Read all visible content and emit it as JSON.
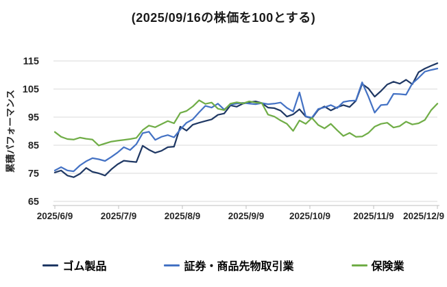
{
  "title": "(2025/09/16の株価を100とする)",
  "colors": {
    "gridline": "#D9D9D9",
    "axis_line": "#BFBFBF",
    "tick_text": "#262626",
    "title_text": "#1a1a1a"
  },
  "chart_data": {
    "type": "line",
    "title": "(2025/09/16の株価を100とする)",
    "xlabel": "",
    "ylabel": "累積パフォーマンス",
    "ylim": [
      65,
      115
    ],
    "yticks": [
      65,
      75,
      85,
      95,
      105,
      115
    ],
    "xtick_labels": [
      "2025/6/9",
      "2025/7/9",
      "2025/8/9",
      "2025/9/9",
      "2025/10/9",
      "2025/11/9",
      "2025/12/9"
    ],
    "grid": "horizontal",
    "legend_position": "bottom",
    "baseline_note": "2025/09/16 = 100",
    "categories": [
      "2025/6/9",
      "2025/6/12",
      "2025/6/15",
      "2025/6/18",
      "2025/6/21",
      "2025/6/24",
      "2025/6/27",
      "2025/6/30",
      "2025/7/3",
      "2025/7/6",
      "2025/7/9",
      "2025/7/12",
      "2025/7/15",
      "2025/7/18",
      "2025/7/21",
      "2025/7/24",
      "2025/7/27",
      "2025/7/30",
      "2025/8/2",
      "2025/8/5",
      "2025/8/8",
      "2025/8/11",
      "2025/8/14",
      "2025/8/17",
      "2025/8/20",
      "2025/8/23",
      "2025/8/26",
      "2025/8/29",
      "2025/9/1",
      "2025/9/4",
      "2025/9/7",
      "2025/9/10",
      "2025/9/13",
      "2025/9/16",
      "2025/9/19",
      "2025/9/22",
      "2025/9/25",
      "2025/9/28",
      "2025/10/1",
      "2025/10/4",
      "2025/10/7",
      "2025/10/10",
      "2025/10/13",
      "2025/10/16",
      "2025/10/19",
      "2025/10/22",
      "2025/10/25",
      "2025/10/28",
      "2025/10/31",
      "2025/11/3",
      "2025/11/6",
      "2025/11/9",
      "2025/11/12",
      "2025/11/15",
      "2025/11/18",
      "2025/11/21",
      "2025/11/24",
      "2025/11/27",
      "2025/11/30",
      "2025/12/3",
      "2025/12/6",
      "2025/12/9"
    ],
    "series": [
      {
        "name": "ゴム製品",
        "color": "#1F3864",
        "values": [
          75.3,
          76.0,
          74.2,
          73.6,
          74.8,
          76.9,
          75.5,
          75.0,
          74.2,
          76.4,
          78.2,
          79.5,
          79.2,
          79.0,
          84.8,
          83.4,
          82.3,
          83.0,
          84.3,
          84.5,
          91.6,
          90.2,
          92.3,
          93.0,
          93.6,
          94.2,
          95.8,
          96.3,
          99.2,
          98.7,
          99.8,
          100.3,
          100.6,
          100.0,
          98.4,
          98.2,
          97.3,
          95.2,
          96.0,
          97.8,
          95.2,
          94.6,
          97.6,
          98.8,
          97.4,
          98.5,
          99.3,
          98.6,
          100.8,
          106.8,
          105.2,
          102.3,
          104.3,
          106.6,
          107.6,
          106.9,
          108.3,
          106.7,
          111.0,
          112.3,
          113.3,
          114.2
        ]
      },
      {
        "name": "証券・商品先物取引業",
        "color": "#4472C4",
        "values": [
          76.0,
          77.2,
          76.0,
          75.7,
          77.8,
          79.3,
          80.4,
          80.0,
          79.4,
          80.8,
          82.4,
          84.3,
          83.3,
          85.4,
          89.3,
          89.8,
          86.9,
          88.0,
          88.6,
          87.8,
          90.6,
          93.0,
          94.2,
          96.7,
          99.0,
          98.4,
          99.8,
          97.7,
          99.5,
          99.8,
          100.1,
          99.8,
          99.6,
          100.0,
          99.6,
          99.8,
          100.2,
          98.3,
          97.0,
          103.8,
          95.3,
          94.8,
          97.9,
          98.5,
          99.3,
          98.2,
          100.4,
          100.8,
          100.9,
          107.4,
          102.3,
          96.6,
          99.3,
          99.5,
          103.3,
          103.2,
          103.0,
          107.0,
          109.0,
          111.2,
          111.8,
          112.3
        ]
      },
      {
        "name": "保険業",
        "color": "#70AD47",
        "values": [
          89.7,
          88.0,
          87.2,
          87.0,
          87.7,
          87.3,
          87.0,
          84.9,
          85.6,
          86.3,
          86.6,
          86.9,
          87.2,
          87.6,
          90.4,
          92.0,
          91.4,
          92.5,
          93.6,
          92.8,
          96.5,
          97.2,
          98.8,
          101.0,
          99.7,
          100.2,
          98.0,
          97.5,
          99.8,
          100.3,
          99.9,
          100.6,
          100.2,
          100.0,
          95.9,
          95.2,
          93.8,
          92.6,
          90.1,
          93.8,
          92.6,
          94.7,
          92.2,
          91.0,
          92.6,
          90.4,
          88.3,
          89.4,
          88.0,
          88.1,
          89.4,
          91.6,
          92.6,
          93.0,
          91.3,
          91.8,
          93.4,
          92.4,
          92.8,
          94.0,
          97.5,
          99.8
        ]
      }
    ]
  }
}
